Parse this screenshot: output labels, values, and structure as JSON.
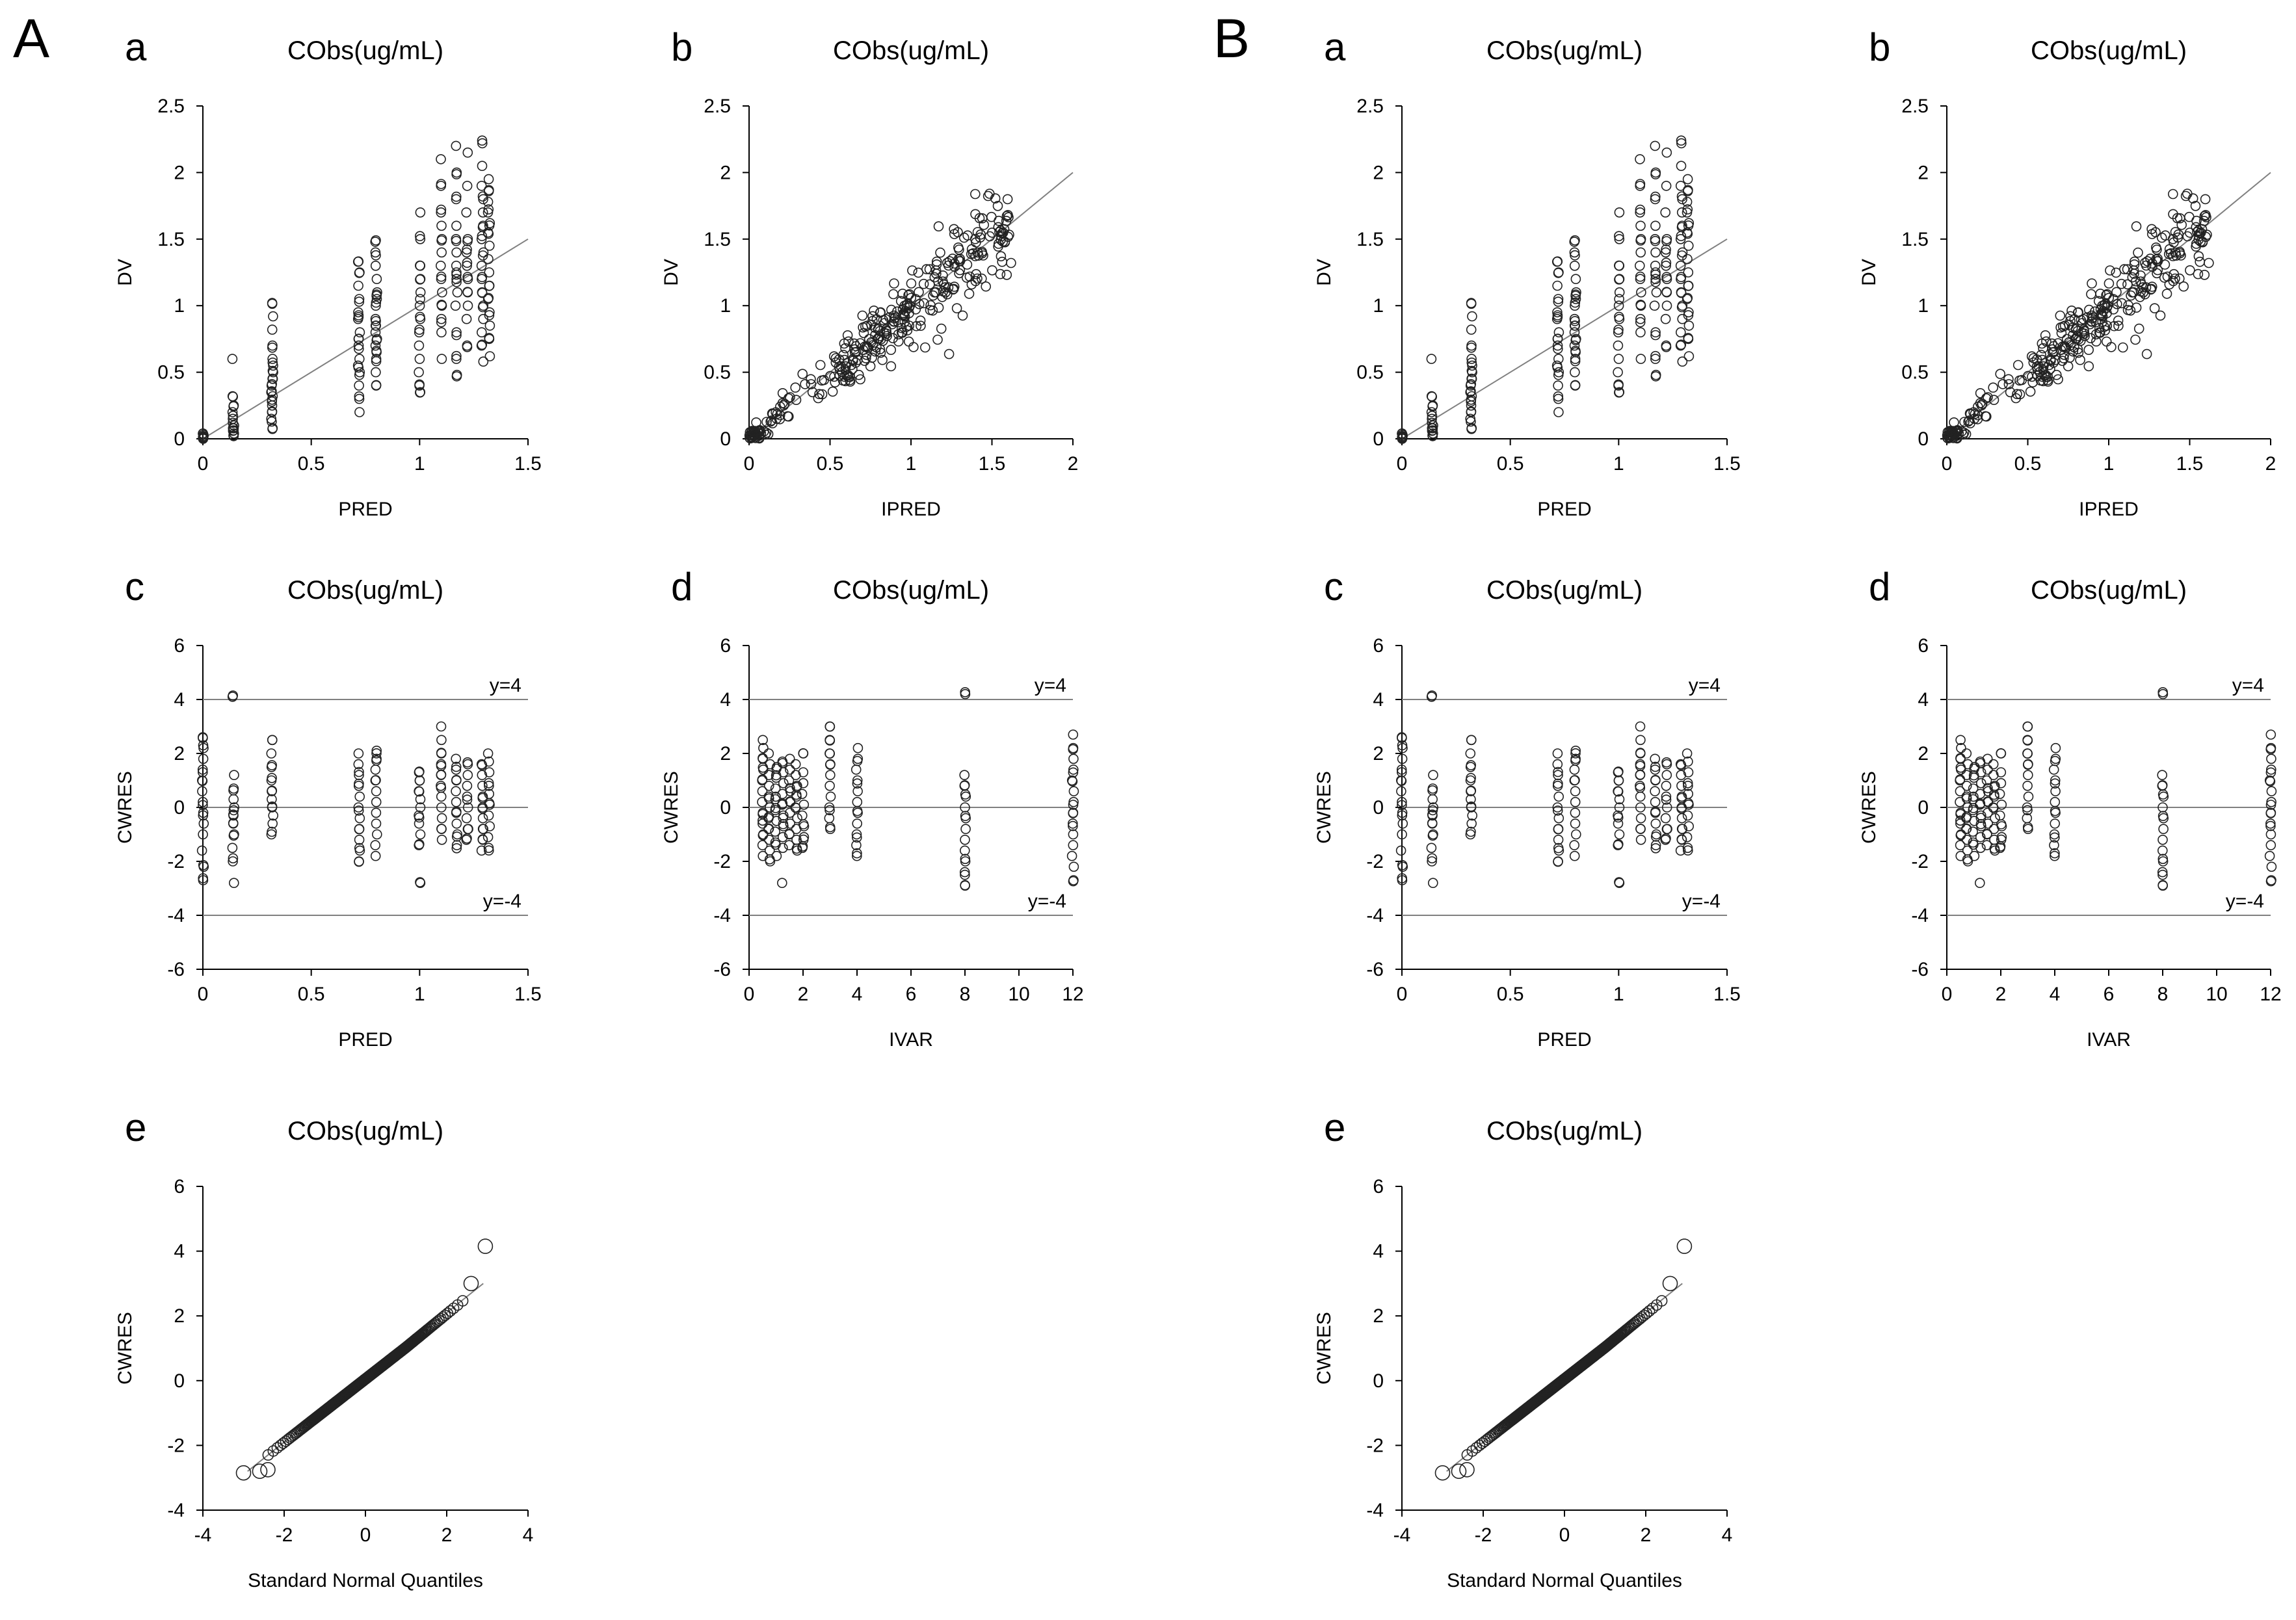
{
  "panel_labels": [
    "A",
    "B"
  ],
  "chart_data": [
    {
      "panel": "A",
      "sub": "a",
      "type": "scatter",
      "title": "CObs(ug/mL)",
      "xlabel": "PRED",
      "ylabel": "DV",
      "xlim": [
        0,
        1.5
      ],
      "ylim": [
        0,
        2.5
      ],
      "xticks": [
        0,
        0.5,
        1,
        1.5
      ],
      "xtick_labels": [
        "0",
        "0.5",
        "1",
        "1.5"
      ],
      "yticks": [
        0,
        0.5,
        1,
        1.5,
        2,
        2.5
      ],
      "ytick_labels": [
        "0",
        "0.5",
        "1",
        "1.5",
        "2",
        "2.5"
      ],
      "reference_lines": [
        {
          "kind": "identity",
          "label": ""
        }
      ],
      "groups": [
        {
          "x": 0.0,
          "y": [
            0.0,
            0.01,
            0.02,
            0.03,
            0.04
          ]
        },
        {
          "x": 0.14,
          "y": [
            0.02,
            0.04,
            0.06,
            0.08,
            0.1,
            0.12,
            0.15,
            0.2,
            0.25,
            0.32,
            0.6
          ]
        },
        {
          "x": 0.32,
          "y": [
            0.08,
            0.15,
            0.2,
            0.25,
            0.28,
            0.32,
            0.35,
            0.4,
            0.45,
            0.5,
            0.55,
            0.6,
            0.7,
            0.82,
            0.92,
            1.02
          ]
        },
        {
          "x": 0.72,
          "y": [
            0.2,
            0.3,
            0.4,
            0.5,
            0.55,
            0.6,
            0.7,
            0.75,
            0.8,
            0.9,
            0.95,
            1.05,
            1.15,
            1.25,
            1.33
          ]
        },
        {
          "x": 0.8,
          "y": [
            0.4,
            0.5,
            0.6,
            0.65,
            0.7,
            0.75,
            0.8,
            0.85,
            0.9,
            1.0,
            1.05,
            1.1,
            1.2,
            1.3,
            1.4,
            1.48
          ]
        },
        {
          "x": 1.0,
          "y": [
            0.35,
            0.4,
            0.5,
            0.6,
            0.7,
            0.8,
            0.9,
            1.0,
            1.05,
            1.1,
            1.2,
            1.3,
            1.5,
            1.7
          ]
        },
        {
          "x": 1.1,
          "y": [
            0.6,
            0.8,
            0.9,
            1.0,
            1.1,
            1.2,
            1.3,
            1.4,
            1.5,
            1.6,
            1.7,
            1.9,
            2.1
          ]
        },
        {
          "x": 1.17,
          "y": [
            0.48,
            0.6,
            0.8,
            1.0,
            1.1,
            1.2,
            1.25,
            1.3,
            1.4,
            1.5,
            1.6,
            1.8,
            2.0,
            2.2
          ]
        },
        {
          "x": 1.22,
          "y": [
            0.7,
            0.9,
            1.0,
            1.1,
            1.2,
            1.3,
            1.4,
            1.5,
            1.7,
            1.9,
            2.15
          ]
        },
        {
          "x": 1.29,
          "y": [
            0.58,
            0.7,
            0.8,
            0.9,
            1.0,
            1.1,
            1.2,
            1.3,
            1.4,
            1.5,
            1.6,
            1.7,
            1.8,
            1.9,
            2.05,
            2.24
          ]
        },
        {
          "x": 1.32,
          "y": [
            0.62,
            0.75,
            0.85,
            0.95,
            1.05,
            1.15,
            1.25,
            1.35,
            1.45,
            1.55,
            1.62,
            1.7,
            1.78,
            1.86,
            1.95
          ]
        }
      ]
    },
    {
      "panel": "A",
      "sub": "b",
      "type": "scatter",
      "title": "CObs(ug/mL)",
      "xlabel": "IPRED",
      "ylabel": "DV",
      "xlim": [
        0,
        2
      ],
      "ylim": [
        0,
        2.5
      ],
      "xticks": [
        0,
        0.5,
        1,
        1.5,
        2
      ],
      "xtick_labels": [
        "0",
        "0.5",
        "1",
        "1.5",
        "2"
      ],
      "yticks": [
        0,
        0.5,
        1,
        1.5,
        2,
        2.5
      ],
      "ytick_labels": [
        "0",
        "0.5",
        "1",
        "1.5",
        "2",
        "2.5"
      ],
      "reference_lines": [
        {
          "kind": "identity",
          "label": ""
        }
      ],
      "points": {
        "description": "identity cloud",
        "n": 320,
        "x_range": [
          0,
          1.62
        ],
        "spread": 0.14
      }
    },
    {
      "panel": "A",
      "sub": "c",
      "type": "scatter",
      "title": "CObs(ug/mL)",
      "xlabel": "PRED",
      "ylabel": "CWRES",
      "xlim": [
        0,
        1.5
      ],
      "ylim": [
        -6,
        6
      ],
      "xticks": [
        0,
        0.5,
        1,
        1.5
      ],
      "xtick_labels": [
        "0",
        "0.5",
        "1",
        "1.5"
      ],
      "yticks": [
        -6,
        -4,
        -2,
        0,
        2,
        4,
        6
      ],
      "ytick_labels": [
        "-6",
        "-4",
        "-2",
        "0",
        "2",
        "4",
        "6"
      ],
      "reference_lines": [
        {
          "kind": "h",
          "y": 4,
          "label": "y=4"
        },
        {
          "kind": "h",
          "y": 0,
          "label": ""
        },
        {
          "kind": "h",
          "y": -4,
          "label": "y=-4"
        }
      ],
      "groups": [
        {
          "x": 0.0,
          "y": [
            -2.7,
            -2.2,
            -1.6,
            -1.0,
            -0.6,
            -0.2,
            0.2,
            0.6,
            1.0,
            1.4,
            1.8,
            2.2,
            2.6
          ]
        },
        {
          "x": 0.14,
          "y": [
            -2.8,
            -2.0,
            -1.5,
            -1.0,
            -0.6,
            -0.3,
            0.0,
            0.3,
            0.7,
            1.2,
            4.1
          ]
        },
        {
          "x": 0.32,
          "y": [
            -1.0,
            -0.6,
            -0.3,
            0.0,
            0.3,
            0.6,
            1.0,
            1.5,
            2.0,
            2.5
          ]
        },
        {
          "x": 0.72,
          "y": [
            -2.0,
            -1.6,
            -1.2,
            -0.8,
            -0.4,
            0.0,
            0.4,
            0.8,
            1.2,
            1.6,
            2.0
          ]
        },
        {
          "x": 0.8,
          "y": [
            -1.8,
            -1.4,
            -1.0,
            -0.6,
            -0.2,
            0.2,
            0.6,
            1.0,
            1.4,
            1.8,
            2.1
          ]
        },
        {
          "x": 1.0,
          "y": [
            -2.8,
            -1.4,
            -1.0,
            -0.6,
            -0.3,
            0.0,
            0.3,
            0.6,
            1.0,
            1.3
          ]
        },
        {
          "x": 1.1,
          "y": [
            -1.2,
            -0.8,
            -0.4,
            0.0,
            0.4,
            0.8,
            1.2,
            1.6,
            2.0,
            2.5,
            3.0
          ]
        },
        {
          "x": 1.17,
          "y": [
            -1.4,
            -1.0,
            -0.6,
            -0.2,
            0.2,
            0.6,
            1.0,
            1.4,
            1.8
          ]
        },
        {
          "x": 1.22,
          "y": [
            -1.2,
            -0.8,
            -0.4,
            0.0,
            0.4,
            0.8,
            1.2,
            1.6
          ]
        },
        {
          "x": 1.29,
          "y": [
            -1.6,
            -1.2,
            -0.8,
            -0.4,
            0.0,
            0.4,
            0.8,
            1.2,
            1.6
          ]
        },
        {
          "x": 1.32,
          "y": [
            -1.5,
            -1.1,
            -0.7,
            -0.3,
            0.1,
            0.5,
            0.9,
            1.3,
            1.7,
            2.0
          ]
        }
      ]
    },
    {
      "panel": "A",
      "sub": "d",
      "type": "scatter",
      "title": "CObs(ug/mL)",
      "xlabel": "IVAR",
      "ylabel": "CWRES",
      "xlim": [
        0,
        12
      ],
      "ylim": [
        -6,
        6
      ],
      "xticks": [
        0,
        2,
        4,
        6,
        8,
        10,
        12
      ],
      "xtick_labels": [
        "0",
        "2",
        "4",
        "6",
        "8",
        "10",
        "12"
      ],
      "yticks": [
        -6,
        -4,
        -2,
        0,
        2,
        4,
        6
      ],
      "ytick_labels": [
        "-6",
        "-4",
        "-2",
        "0",
        "2",
        "4",
        "6"
      ],
      "reference_lines": [
        {
          "kind": "h",
          "y": 4,
          "label": "y=4"
        },
        {
          "kind": "h",
          "y": 0,
          "label": ""
        },
        {
          "kind": "h",
          "y": -4,
          "label": "y=-4"
        }
      ],
      "groups": [
        {
          "x": 0.5,
          "y": [
            -1.8,
            -1.4,
            -1.0,
            -0.6,
            -0.2,
            0.2,
            0.6,
            1.0,
            1.4,
            1.8,
            2.2,
            2.5
          ]
        },
        {
          "x": 0.75,
          "y": [
            -2.0,
            -1.6,
            -1.2,
            -0.8,
            -0.4,
            0.0,
            0.4,
            0.8,
            1.2,
            1.6,
            2.0
          ]
        },
        {
          "x": 1.0,
          "y": [
            -1.8,
            -1.3,
            -0.9,
            -0.5,
            -0.1,
            0.3,
            0.7,
            1.1,
            1.5
          ]
        },
        {
          "x": 1.25,
          "y": [
            -2.8,
            -1.5,
            -1.1,
            -0.7,
            -0.3,
            0.1,
            0.5,
            0.9,
            1.3,
            1.7
          ]
        },
        {
          "x": 1.5,
          "y": [
            -1.4,
            -1.0,
            -0.6,
            -0.2,
            0.2,
            0.6,
            1.0,
            1.4,
            1.8
          ]
        },
        {
          "x": 1.75,
          "y": [
            -1.6,
            -1.2,
            -0.8,
            -0.4,
            0.0,
            0.4,
            0.8,
            1.2,
            1.6
          ]
        },
        {
          "x": 2.0,
          "y": [
            -1.5,
            -1.1,
            -0.7,
            -0.3,
            0.1,
            0.5,
            0.9,
            1.3,
            2.0
          ]
        },
        {
          "x": 3.0,
          "y": [
            -0.8,
            -0.4,
            0.0,
            0.4,
            0.8,
            1.2,
            1.6,
            2.0,
            2.5,
            3.0
          ]
        },
        {
          "x": 4.0,
          "y": [
            -1.8,
            -1.4,
            -1.0,
            -0.6,
            -0.2,
            0.2,
            0.6,
            1.0,
            1.4,
            1.8,
            2.2
          ]
        },
        {
          "x": 8.0,
          "y": [
            -2.9,
            -2.4,
            -2.0,
            -1.6,
            -1.2,
            -0.8,
            -0.4,
            0.0,
            0.4,
            0.8,
            1.2,
            4.2
          ]
        },
        {
          "x": 12.0,
          "y": [
            -2.7,
            -2.2,
            -1.8,
            -1.4,
            -1.0,
            -0.6,
            -0.2,
            0.2,
            0.6,
            1.0,
            1.4,
            1.8,
            2.2,
            2.7
          ]
        }
      ]
    },
    {
      "panel": "A",
      "sub": "e",
      "type": "scatter",
      "title": "CObs(ug/mL)",
      "xlabel": "Standard Normal Quantiles",
      "ylabel": "CWRES",
      "xlim": [
        -4,
        4
      ],
      "ylim": [
        -4,
        6
      ],
      "xticks": [
        -4,
        -2,
        0,
        2,
        4
      ],
      "xtick_labels": [
        "-4",
        "-2",
        "0",
        "2",
        "4"
      ],
      "yticks": [
        -4,
        -2,
        0,
        2,
        4,
        6
      ],
      "ytick_labels": [
        "-4",
        "-2",
        "0",
        "2",
        "4",
        "6"
      ],
      "reference_lines": [
        {
          "kind": "qq",
          "from": [
            -2.9,
            -2.8
          ],
          "to": [
            2.9,
            3.0
          ],
          "label": ""
        }
      ],
      "points": {
        "description": "normal QQ",
        "x_range": [
          -3.0,
          2.6
        ],
        "y_range": [
          -2.8,
          3.0
        ],
        "outliers": [
          [
            -3.0,
            -2.85
          ],
          [
            -2.6,
            -2.8
          ],
          [
            -2.4,
            -2.75
          ],
          [
            2.6,
            3.0
          ],
          [
            2.95,
            4.15
          ]
        ]
      }
    },
    {
      "panel": "B",
      "sub": "a",
      "type": "scatter",
      "title": "CObs(ug/mL)",
      "xlabel": "PRED",
      "ylabel": "DV",
      "xlim": [
        0,
        1.5
      ],
      "ylim": [
        0,
        2.5
      ],
      "xticks": [
        0,
        0.5,
        1,
        1.5
      ],
      "xtick_labels": [
        "0",
        "0.5",
        "1",
        "1.5"
      ],
      "yticks": [
        0,
        0.5,
        1,
        1.5,
        2,
        2.5
      ],
      "ytick_labels": [
        "0",
        "0.5",
        "1",
        "1.5",
        "2",
        "2.5"
      ],
      "reference_lines": [
        {
          "kind": "identity",
          "label": ""
        }
      ],
      "groups_ref": "same as A.a"
    },
    {
      "panel": "B",
      "sub": "b",
      "type": "scatter",
      "title": "CObs(ug/mL)",
      "xlabel": "IPRED",
      "ylabel": "DV",
      "xlim": [
        0,
        2
      ],
      "ylim": [
        0,
        2.5
      ],
      "xticks": [
        0,
        0.5,
        1,
        1.5,
        2
      ],
      "xtick_labels": [
        "0",
        "0.5",
        "1",
        "1.5",
        "2"
      ],
      "yticks": [
        0,
        0.5,
        1,
        1.5,
        2,
        2.5
      ],
      "ytick_labels": [
        "0",
        "0.5",
        "1",
        "1.5",
        "2",
        "2.5"
      ],
      "reference_lines": [
        {
          "kind": "identity",
          "label": ""
        }
      ],
      "groups_ref": "same as A.b"
    },
    {
      "panel": "B",
      "sub": "c",
      "type": "scatter",
      "title": "CObs(ug/mL)",
      "xlabel": "PRED",
      "ylabel": "CWRES",
      "xlim": [
        0,
        1.5
      ],
      "ylim": [
        -6,
        6
      ],
      "xticks": [
        0,
        0.5,
        1,
        1.5
      ],
      "xtick_labels": [
        "0",
        "0.5",
        "1",
        "1.5"
      ],
      "yticks": [
        -6,
        -4,
        -2,
        0,
        2,
        4,
        6
      ],
      "ytick_labels": [
        "-6",
        "-4",
        "-2",
        "0",
        "2",
        "4",
        "6"
      ],
      "reference_lines": [
        {
          "kind": "h",
          "y": 4,
          "label": "y=4"
        },
        {
          "kind": "h",
          "y": 0,
          "label": ""
        },
        {
          "kind": "h",
          "y": -4,
          "label": "y=-4"
        }
      ],
      "groups_ref": "same as A.c"
    },
    {
      "panel": "B",
      "sub": "d",
      "type": "scatter",
      "title": "CObs(ug/mL)",
      "xlabel": "IVAR",
      "ylabel": "CWRES",
      "xlim": [
        0,
        12
      ],
      "ylim": [
        -6,
        6
      ],
      "xticks": [
        0,
        2,
        4,
        6,
        8,
        10,
        12
      ],
      "xtick_labels": [
        "0",
        "2",
        "4",
        "6",
        "8",
        "10",
        "12"
      ],
      "yticks": [
        -6,
        -4,
        -2,
        0,
        2,
        4,
        6
      ],
      "ytick_labels": [
        "-6",
        "-4",
        "-2",
        "0",
        "2",
        "4",
        "6"
      ],
      "reference_lines": [
        {
          "kind": "h",
          "y": 4,
          "label": "y=4"
        },
        {
          "kind": "h",
          "y": 0,
          "label": ""
        },
        {
          "kind": "h",
          "y": -4,
          "label": "y=-4"
        }
      ],
      "groups_ref": "same as A.d"
    },
    {
      "panel": "B",
      "sub": "e",
      "type": "scatter",
      "title": "CObs(ug/mL)",
      "xlabel": "Standard Normal Quantiles",
      "ylabel": "CWRES",
      "xlim": [
        -4,
        4
      ],
      "ylim": [
        -4,
        6
      ],
      "xticks": [
        -4,
        -2,
        0,
        2,
        4
      ],
      "xtick_labels": [
        "-4",
        "-2",
        "0",
        "2",
        "4"
      ],
      "yticks": [
        -4,
        -2,
        0,
        2,
        4,
        6
      ],
      "ytick_labels": [
        "-4",
        "-2",
        "0",
        "2",
        "4",
        "6"
      ],
      "reference_lines": [
        {
          "kind": "qq",
          "from": [
            -2.9,
            -2.8
          ],
          "to": [
            2.9,
            3.0
          ],
          "label": ""
        }
      ],
      "groups_ref": "same as A.e"
    }
  ]
}
